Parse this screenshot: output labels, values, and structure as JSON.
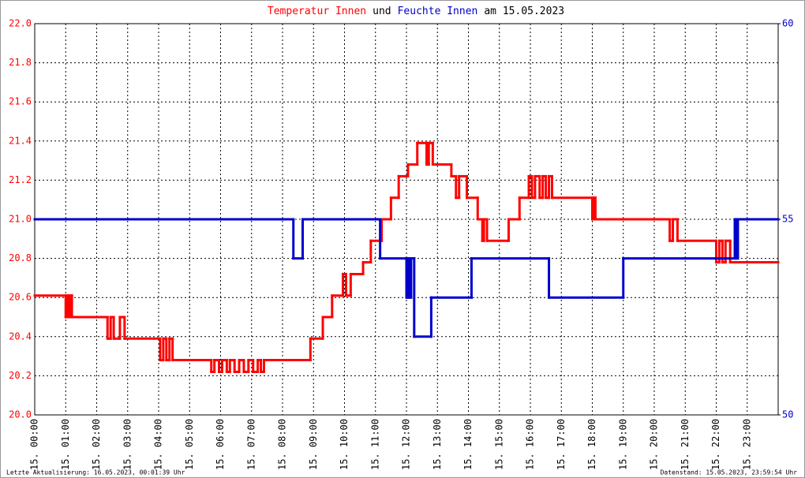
{
  "chart_data": {
    "type": "step",
    "title_parts": [
      "Temperatur Innen",
      "und",
      "Feuchte Innen",
      "am 15.05.2023"
    ],
    "xlim": [
      0,
      24
    ],
    "xticks": [
      {
        "value": 0,
        "label": "15. 00:00"
      },
      {
        "value": 1,
        "label": "15. 01:00"
      },
      {
        "value": 2,
        "label": "15. 02:00"
      },
      {
        "value": 3,
        "label": "15. 03:00"
      },
      {
        "value": 4,
        "label": "15. 04:00"
      },
      {
        "value": 5,
        "label": "15. 05:00"
      },
      {
        "value": 6,
        "label": "15. 06:00"
      },
      {
        "value": 7,
        "label": "15. 07:00"
      },
      {
        "value": 8,
        "label": "15. 08:00"
      },
      {
        "value": 9,
        "label": "15. 09:00"
      },
      {
        "value": 10,
        "label": "15. 10:00"
      },
      {
        "value": 11,
        "label": "15. 11:00"
      },
      {
        "value": 12,
        "label": "15. 12:00"
      },
      {
        "value": 13,
        "label": "15. 13:00"
      },
      {
        "value": 14,
        "label": "15. 14:00"
      },
      {
        "value": 15,
        "label": "15. 15:00"
      },
      {
        "value": 16,
        "label": "15. 16:00"
      },
      {
        "value": 17,
        "label": "15. 17:00"
      },
      {
        "value": 18,
        "label": "15. 18:00"
      },
      {
        "value": 19,
        "label": "15. 19:00"
      },
      {
        "value": 20,
        "label": "15. 20:00"
      },
      {
        "value": 21,
        "label": "15. 21:00"
      },
      {
        "value": 22,
        "label": "15. 22:00"
      },
      {
        "value": 23,
        "label": "15. 23:00"
      }
    ],
    "ylim": [
      20.0,
      22.0
    ],
    "yticks": [
      {
        "value": 20,
        "label": "20.0"
      },
      20.2,
      20.4,
      20.6,
      20.8,
      {
        "value": 21,
        "label": "21.0"
      },
      21.2,
      21.4,
      21.6,
      21.8,
      {
        "value": 22,
        "label": "22.0"
      }
    ],
    "y2lim": [
      50,
      60
    ],
    "y2ticks": [
      50,
      55,
      60
    ],
    "grid": true,
    "series": [
      {
        "name": "Temperatur Innen",
        "color": "#ff0000",
        "x": [
          0,
          1.0,
          1.05,
          1.1,
          1.15,
          1.2,
          2.35,
          2.45,
          2.55,
          2.75,
          2.9,
          4.05,
          4.15,
          4.25,
          4.35,
          4.45,
          5.7,
          5.8,
          5.95,
          6.05,
          6.2,
          6.3,
          6.45,
          6.6,
          6.75,
          6.9,
          7.05,
          7.2,
          7.3,
          7.4,
          8.9,
          9.3,
          9.6,
          9.95,
          10.05,
          10.2,
          10.6,
          10.85,
          11.2,
          11.5,
          11.75,
          12.05,
          12.35,
          12.65,
          12.72,
          12.85,
          13.45,
          13.6,
          13.7,
          13.95,
          14.3,
          14.45,
          14.5,
          14.6,
          15.3,
          15.65,
          15.95,
          16.05,
          16.15,
          16.3,
          16.4,
          16.5,
          16.6,
          16.7,
          18.0,
          18.05,
          18.1,
          20.5,
          20.6,
          20.75,
          22.0,
          22.1,
          22.2,
          22.3,
          22.45
        ],
        "values": [
          20.61,
          20.5,
          20.61,
          20.5,
          20.61,
          20.5,
          20.39,
          20.5,
          20.39,
          20.5,
          20.39,
          20.28,
          20.39,
          20.28,
          20.39,
          20.28,
          20.22,
          20.28,
          20.22,
          20.28,
          20.22,
          20.28,
          20.22,
          20.28,
          20.22,
          20.28,
          20.22,
          20.28,
          20.22,
          20.28,
          20.39,
          20.5,
          20.61,
          20.72,
          20.61,
          20.72,
          20.78,
          20.89,
          21.0,
          21.11,
          21.22,
          21.28,
          21.39,
          21.28,
          21.39,
          21.28,
          21.22,
          21.11,
          21.22,
          21.11,
          21.0,
          20.89,
          21.0,
          20.89,
          21.0,
          21.11,
          21.22,
          21.11,
          21.22,
          21.11,
          21.22,
          21.11,
          21.22,
          21.11,
          21.0,
          21.11,
          21.0,
          20.89,
          21.0,
          20.89,
          20.78,
          20.89,
          20.78,
          20.89,
          20.78
        ]
      },
      {
        "name": "Feuchte Innen",
        "color": "#0000cc",
        "axis": "y2",
        "x": [
          0,
          8.35,
          8.65,
          11.15,
          12.0,
          12.05,
          12.1,
          12.15,
          12.25,
          12.8,
          14.1,
          16.6,
          19.0,
          22.6,
          22.65,
          22.7
        ],
        "values": [
          55,
          54,
          55,
          54,
          53,
          54,
          53,
          54,
          52,
          53,
          54,
          53,
          54,
          55,
          54,
          55
        ]
      }
    ],
    "footer_left": "Letzte Aktualisierung: 16.05.2023, 00:01:39 Uhr",
    "footer_right": "Datenstand: 15.05.2023, 23:59:54 Uhr"
  }
}
